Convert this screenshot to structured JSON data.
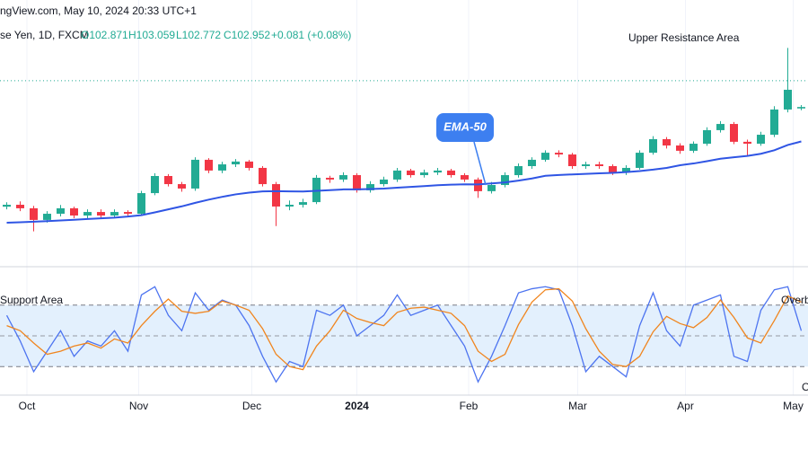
{
  "header": {
    "source": "ngView.com, May 10, 2024 20:33 UTC+1",
    "symbol": "se Yen, 1D, FXCM",
    "open": "O102.871",
    "high": "H103.059",
    "low": "L102.772",
    "close": "C102.952",
    "change": "+0.081 (+0.08%)"
  },
  "chart_data": [
    {
      "type": "candlestick",
      "xlim": [
        -0.5,
        59.5
      ],
      "ylim": [
        94,
        108
      ],
      "up_color": "#22ab94",
      "down_color": "#f23645",
      "open": [
        97.3,
        97.41,
        97.21,
        96.55,
        96.9,
        97.21,
        96.8,
        97.0,
        96.8,
        97.0,
        96.9,
        98.07,
        99.04,
        98.58,
        98.33,
        99.96,
        99.35,
        99.7,
        99.86,
        99.5,
        98.58,
        97.31,
        97.41,
        97.56,
        98.94,
        98.84,
        99.09,
        98.23,
        98.58,
        98.84,
        99.35,
        99.09,
        99.24,
        99.35,
        99.09,
        98.84,
        98.18,
        98.53,
        99.09,
        99.6,
        99.96,
        100.36,
        100.26,
        99.6,
        99.7,
        99.6,
        99.24,
        99.5,
        100.36,
        101.13,
        100.77,
        100.47,
        100.87,
        101.64,
        101.99,
        100.98,
        100.87,
        101.38,
        102.81,
        102.871
      ],
      "high": [
        97.55,
        97.6,
        97.35,
        97.05,
        97.4,
        97.3,
        97.15,
        97.15,
        97.15,
        97.1,
        98.2,
        99.2,
        99.15,
        98.7,
        100.1,
        100.05,
        99.85,
        100.0,
        99.95,
        99.6,
        98.7,
        97.65,
        97.75,
        99.1,
        99.05,
        99.25,
        99.2,
        98.75,
        99.0,
        99.5,
        99.45,
        99.4,
        99.5,
        99.45,
        99.2,
        98.95,
        98.7,
        99.25,
        99.75,
        100.1,
        100.5,
        100.5,
        100.35,
        99.85,
        99.85,
        99.7,
        99.65,
        100.5,
        101.3,
        101.25,
        100.9,
        101.0,
        101.8,
        102.15,
        102.1,
        101.1,
        101.55,
        103.0,
        106.3,
        103.059
      ],
      "low": [
        97.15,
        97.05,
        95.9,
        96.4,
        96.75,
        96.65,
        96.65,
        96.65,
        96.65,
        96.7,
        96.8,
        97.95,
        98.45,
        98.15,
        98.2,
        99.2,
        99.2,
        99.55,
        99.35,
        98.45,
        96.2,
        97.1,
        97.25,
        97.45,
        98.65,
        98.7,
        98.1,
        98.1,
        98.45,
        98.7,
        98.95,
        98.95,
        99.1,
        98.95,
        98.7,
        97.8,
        98.05,
        98.4,
        98.95,
        99.45,
        99.85,
        100.1,
        99.45,
        99.45,
        99.45,
        99.1,
        99.1,
        99.4,
        100.25,
        100.6,
        100.3,
        100.35,
        100.75,
        101.5,
        100.85,
        100.2,
        100.75,
        101.25,
        102.65,
        102.772
      ],
      "close": [
        97.41,
        97.21,
        96.55,
        96.9,
        97.21,
        96.8,
        97.0,
        96.8,
        97.0,
        96.9,
        98.07,
        99.04,
        98.58,
        98.33,
        99.96,
        99.35,
        99.7,
        99.86,
        99.5,
        98.58,
        97.31,
        97.41,
        97.56,
        98.94,
        98.84,
        99.09,
        98.23,
        98.58,
        98.84,
        99.35,
        99.09,
        99.24,
        99.35,
        99.09,
        98.84,
        98.18,
        98.53,
        99.09,
        99.6,
        99.96,
        100.36,
        100.26,
        99.6,
        99.7,
        99.6,
        99.24,
        99.5,
        100.36,
        101.13,
        100.77,
        100.47,
        100.87,
        101.64,
        101.99,
        100.98,
        100.87,
        101.38,
        102.81,
        103.93,
        102.952
      ],
      "ema": {
        "name": "EMA-50",
        "color": "#2f55e4",
        "values": [
          96.39,
          96.42,
          96.45,
          96.48,
          96.52,
          96.56,
          96.6,
          96.64,
          96.68,
          96.74,
          96.82,
          96.98,
          97.15,
          97.32,
          97.52,
          97.7,
          97.86,
          98.0,
          98.1,
          98.17,
          98.18,
          98.17,
          98.16,
          98.2,
          98.24,
          98.28,
          98.28,
          98.3,
          98.33,
          98.38,
          98.42,
          98.47,
          98.52,
          98.55,
          98.57,
          98.56,
          98.62,
          98.68,
          98.78,
          98.9,
          99.05,
          99.1,
          99.13,
          99.16,
          99.19,
          99.22,
          99.26,
          99.32,
          99.4,
          99.5,
          99.65,
          99.75,
          99.88,
          100.02,
          100.1,
          100.18,
          100.3,
          100.5,
          100.8,
          101.0
        ]
      },
      "resistance_line": 104.44,
      "annotations": {
        "resistance": "Upper Resistance Area"
      }
    },
    {
      "type": "line",
      "xlim": [
        -0.5,
        59.5
      ],
      "ylim": [
        0,
        100
      ],
      "bands": [
        20,
        80
      ],
      "midline": 50,
      "band_color": "#e3f0fd",
      "series": [
        {
          "color": "#4d74f0",
          "values": [
            70,
            45,
            15,
            35,
            55,
            30,
            45,
            40,
            55,
            35,
            90,
            98,
            70,
            55,
            92,
            75,
            85,
            80,
            60,
            30,
            5,
            25,
            20,
            75,
            70,
            80,
            50,
            60,
            70,
            90,
            70,
            75,
            80,
            60,
            40,
            5,
            30,
            60,
            92,
            96,
            98,
            95,
            60,
            15,
            30,
            20,
            10,
            60,
            92,
            55,
            40,
            80,
            85,
            90,
            30,
            25,
            75,
            95,
            98,
            55
          ]
        },
        {
          "color": "#f0851e",
          "values": [
            60,
            55,
            43,
            32,
            35,
            40,
            43,
            38,
            47,
            43,
            60,
            74,
            86,
            74,
            72,
            74,
            84,
            80,
            75,
            57,
            32,
            20,
            17,
            40,
            55,
            75,
            67,
            63,
            60,
            73,
            77,
            78,
            75,
            72,
            60,
            35,
            25,
            32,
            61,
            83,
            95,
            96,
            84,
            57,
            35,
            22,
            20,
            30,
            54,
            69,
            62,
            58,
            68,
            85,
            68,
            48,
            43,
            65,
            89,
            83
          ]
        }
      ],
      "xticks": [
        {
          "value": 1.5,
          "label": "Oct"
        },
        {
          "value": 9.8,
          "label": "Nov"
        },
        {
          "value": 18.2,
          "label": "Dec"
        },
        {
          "value": 26,
          "label": "2024"
        },
        {
          "value": 34.3,
          "label": "Feb"
        },
        {
          "value": 42.4,
          "label": "Mar"
        },
        {
          "value": 50.4,
          "label": "Apr"
        },
        {
          "value": 58.4,
          "label": "May"
        }
      ],
      "annotations": {
        "support": "Support Area",
        "overbought": "Overb",
        "oversold": "O"
      }
    }
  ]
}
